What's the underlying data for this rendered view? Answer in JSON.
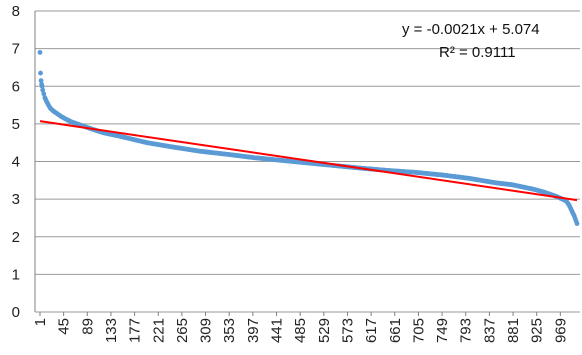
{
  "chart_data": {
    "type": "scatter",
    "title": "",
    "xlabel": "",
    "ylabel": "",
    "ylim": [
      0,
      8
    ],
    "y_ticks": [
      0,
      1,
      2,
      3,
      4,
      5,
      6,
      7,
      8
    ],
    "x_tick_labels": [
      "1",
      "45",
      "89",
      "133",
      "177",
      "221",
      "265",
      "309",
      "353",
      "397",
      "441",
      "485",
      "529",
      "573",
      "617",
      "661",
      "705",
      "749",
      "793",
      "837",
      "881",
      "925",
      "969"
    ],
    "x_range": [
      1,
      1000
    ],
    "grid": "horizontal",
    "legend": "none",
    "series": [
      {
        "marker_color": "#5B9BD5",
        "x": [
          1,
          2,
          3,
          4,
          5,
          6,
          8,
          10,
          13,
          16,
          20,
          25,
          30,
          40,
          50,
          60,
          80,
          100,
          120,
          150,
          200,
          250,
          300,
          350,
          400,
          450,
          500,
          550,
          600,
          650,
          700,
          750,
          800,
          850,
          880,
          900,
          920,
          940,
          960,
          970,
          980,
          985,
          990,
          995,
          1000
        ],
        "values": [
          6.9,
          6.35,
          6.15,
          6.05,
          6.0,
          5.9,
          5.8,
          5.7,
          5.6,
          5.52,
          5.42,
          5.35,
          5.3,
          5.2,
          5.12,
          5.05,
          4.95,
          4.85,
          4.76,
          4.67,
          4.5,
          4.38,
          4.27,
          4.19,
          4.1,
          4.03,
          3.96,
          3.89,
          3.82,
          3.76,
          3.71,
          3.64,
          3.55,
          3.43,
          3.38,
          3.32,
          3.26,
          3.18,
          3.08,
          3.02,
          2.95,
          2.85,
          2.7,
          2.55,
          2.35
        ]
      }
    ],
    "trendline": {
      "type": "linear",
      "slope": -0.0021,
      "intercept": 5.074,
      "color": "#FF0000"
    },
    "annotations": [
      "y = -0.0021x + 5.074",
      "R² = 0.9111"
    ]
  }
}
